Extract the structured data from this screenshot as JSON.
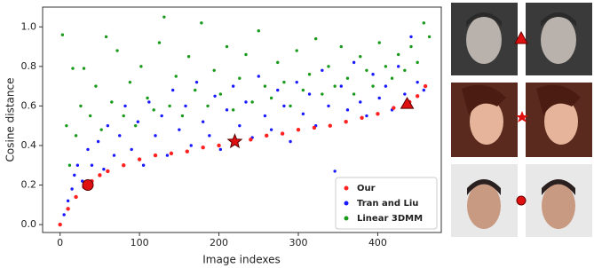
{
  "chart_data": {
    "type": "scatter",
    "xlabel": "Image indexes",
    "ylabel": "Cosine distance",
    "xlim": [
      -22,
      480
    ],
    "ylim": [
      -0.04,
      1.1
    ],
    "xticks": [
      0,
      100,
      200,
      300,
      400
    ],
    "yticks": [
      {
        "value": 0,
        "label": "0.0"
      },
      {
        "value": 0.2,
        "label": "0.2"
      },
      {
        "value": 0.4,
        "label": "0.4"
      },
      {
        "value": 0.6,
        "label": "0.6"
      },
      {
        "value": 0.8,
        "label": "0.8"
      },
      {
        "value": 1,
        "label": "1.0"
      }
    ],
    "legend": "lower right",
    "series": [
      {
        "name": "Our",
        "color": "#ff2020",
        "x": [
          0,
          10,
          20,
          30,
          40,
          50,
          60,
          80,
          100,
          120,
          140,
          160,
          180,
          200,
          220,
          240,
          260,
          280,
          300,
          320,
          340,
          360,
          380,
          400,
          420,
          440,
          450,
          460
        ],
        "values": [
          0.0,
          0.08,
          0.14,
          0.19,
          0.22,
          0.25,
          0.27,
          0.3,
          0.33,
          0.35,
          0.36,
          0.37,
          0.39,
          0.4,
          0.42,
          0.43,
          0.45,
          0.46,
          0.48,
          0.49,
          0.5,
          0.52,
          0.54,
          0.56,
          0.59,
          0.62,
          0.65,
          0.7
        ]
      },
      {
        "name": "Tran and Liu",
        "color": "#1a1aff",
        "x": [
          5,
          10,
          15,
          18,
          22,
          28,
          35,
          40,
          48,
          55,
          60,
          68,
          75,
          82,
          90,
          98,
          105,
          112,
          120,
          128,
          135,
          142,
          150,
          158,
          165,
          172,
          180,
          188,
          195,
          202,
          210,
          218,
          226,
          234,
          242,
          250,
          258,
          266,
          274,
          282,
          290,
          298,
          306,
          314,
          322,
          330,
          338,
          346,
          354,
          362,
          370,
          378,
          386,
          394,
          402,
          410,
          418,
          426,
          434,
          442,
          450,
          458
        ],
        "values": [
          0.05,
          0.12,
          0.18,
          0.25,
          0.3,
          0.22,
          0.38,
          0.3,
          0.42,
          0.28,
          0.5,
          0.35,
          0.45,
          0.6,
          0.38,
          0.52,
          0.3,
          0.62,
          0.45,
          0.55,
          0.35,
          0.68,
          0.48,
          0.6,
          0.4,
          0.72,
          0.52,
          0.45,
          0.65,
          0.38,
          0.58,
          0.7,
          0.5,
          0.62,
          0.44,
          0.75,
          0.55,
          0.48,
          0.68,
          0.6,
          0.42,
          0.72,
          0.56,
          0.66,
          0.5,
          0.78,
          0.6,
          0.27,
          0.7,
          0.58,
          0.82,
          0.62,
          0.55,
          0.76,
          0.64,
          0.7,
          0.58,
          0.8,
          0.66,
          0.95,
          0.72,
          0.68
        ]
      },
      {
        "name": "Linear 3DMM",
        "color": "#1a9a1a",
        "x": [
          3,
          8,
          12,
          16,
          20,
          26,
          30,
          38,
          45,
          52,
          58,
          65,
          72,
          80,
          88,
          95,
          102,
          110,
          118,
          125,
          131,
          138,
          146,
          154,
          162,
          170,
          178,
          186,
          194,
          202,
          210,
          218,
          226,
          234,
          242,
          250,
          258,
          266,
          274,
          282,
          290,
          298,
          306,
          314,
          322,
          330,
          338,
          346,
          354,
          362,
          370,
          378,
          386,
          394,
          402,
          410,
          418,
          426,
          434,
          442,
          450,
          458,
          465
        ],
        "values": [
          0.96,
          0.5,
          0.3,
          0.79,
          0.45,
          0.6,
          0.79,
          0.55,
          0.7,
          0.48,
          0.95,
          0.62,
          0.88,
          0.55,
          0.72,
          0.5,
          0.8,
          0.64,
          0.58,
          0.92,
          1.05,
          0.6,
          0.75,
          0.55,
          0.85,
          0.68,
          1.02,
          0.6,
          0.78,
          0.66,
          0.9,
          0.58,
          0.74,
          0.86,
          0.62,
          0.98,
          0.7,
          0.64,
          0.82,
          0.72,
          0.6,
          0.88,
          0.68,
          0.76,
          0.94,
          0.66,
          0.8,
          0.7,
          0.9,
          0.74,
          0.66,
          0.85,
          0.78,
          0.7,
          0.92,
          0.8,
          0.74,
          0.86,
          0.78,
          0.9,
          0.82,
          1.02,
          0.95
        ]
      }
    ],
    "markers": [
      {
        "x": 35,
        "y": 0.2,
        "shape": "circle"
      },
      {
        "x": 220,
        "y": 0.42,
        "shape": "star"
      },
      {
        "x": 437,
        "y": 0.61,
        "shape": "triangle"
      }
    ]
  }
}
